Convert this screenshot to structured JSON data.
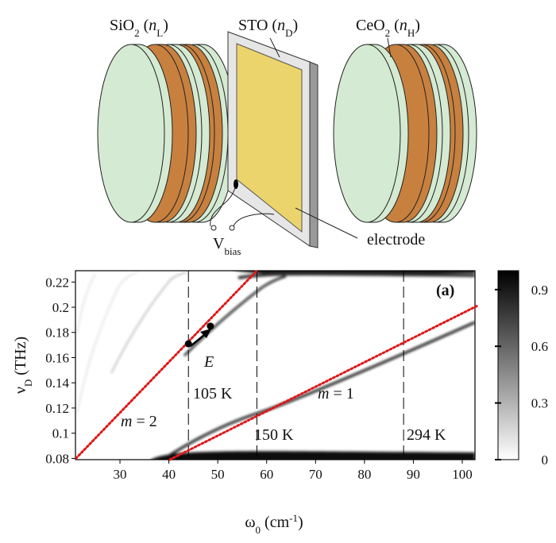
{
  "diagram": {
    "labels": [
      {
        "parts": [
          {
            "text": "SiO"
          },
          {
            "text": "2",
            "style": "sub"
          },
          {
            "text": " ("
          },
          {
            "text": "n",
            "style": "italic"
          },
          {
            "text": "L",
            "style": "sub"
          },
          {
            "text": ")"
          }
        ]
      },
      {
        "parts": [
          {
            "text": "STO ("
          },
          {
            "text": "n",
            "style": "italic"
          },
          {
            "text": "D",
            "style": "sub"
          },
          {
            "text": ")"
          }
        ]
      },
      {
        "parts": [
          {
            "text": "CeO"
          },
          {
            "text": "2",
            "style": "sub"
          },
          {
            "text": " ("
          },
          {
            "text": "n",
            "style": "italic"
          },
          {
            "text": "H",
            "style": "sub"
          },
          {
            "text": ")"
          }
        ]
      },
      {
        "parts": [
          {
            "text": "V"
          },
          {
            "text": "bias",
            "style": "sub"
          }
        ]
      },
      {
        "parts": [
          {
            "text": "electrode"
          }
        ]
      }
    ]
  },
  "chart_data": {
    "type": "heatmap",
    "panel_label": "(a)",
    "x_label": {
      "parts": [
        {
          "text": "ω"
        },
        {
          "text": "0",
          "style": "sub"
        },
        {
          "text": " (cm"
        },
        {
          "text": "-1",
          "style": "sup"
        },
        {
          "text": ")"
        }
      ]
    },
    "y_label": {
      "parts": [
        {
          "text": "ν"
        },
        {
          "text": "D",
          "style": "sub"
        },
        {
          "text": " (THz)"
        }
      ]
    },
    "xlim": [
      20.9,
      102.6
    ],
    "xticks": [
      30,
      40,
      50,
      60,
      70,
      80,
      90,
      100
    ],
    "ylim": [
      0.079,
      0.229
    ],
    "yticks": [
      0.08,
      0.1,
      0.12,
      0.14,
      0.16,
      0.18,
      0.2,
      0.22
    ],
    "colorbar": {
      "lim": [
        0,
        1
      ],
      "ticks": [
        0,
        0.3,
        0.6,
        0.9
      ],
      "colors": [
        "#ffffff",
        "#000000"
      ]
    },
    "vlines": {
      "x": [
        44,
        58,
        88
      ],
      "color": "#000000"
    },
    "lines": [
      {
        "x": [
          21,
          58
        ],
        "values": [
          0.08,
          0.229
        ],
        "color": "#e01818"
      },
      {
        "x": [
          40.2,
          103
        ],
        "values": [
          0.079,
          0.201
        ],
        "color": "#e01818"
      }
    ],
    "points": {
      "x": [
        44,
        48.5
      ],
      "values": [
        0.171,
        0.185
      ],
      "color": "#000000"
    },
    "annotations": [
      {
        "parts": [
          {
            "text": "E",
            "style": "italic"
          }
        ]
      },
      {
        "parts": [
          {
            "text": "105 K"
          }
        ]
      },
      {
        "parts": [
          {
            "text": "150 K"
          }
        ]
      },
      {
        "parts": [
          {
            "text": "294 K"
          }
        ]
      },
      {
        "parts": [
          {
            "text": "m",
            "style": "italic"
          },
          {
            "text": " = 2"
          }
        ]
      },
      {
        "parts": [
          {
            "text": "m",
            "style": "italic"
          },
          {
            "text": " = 1"
          }
        ]
      }
    ]
  }
}
